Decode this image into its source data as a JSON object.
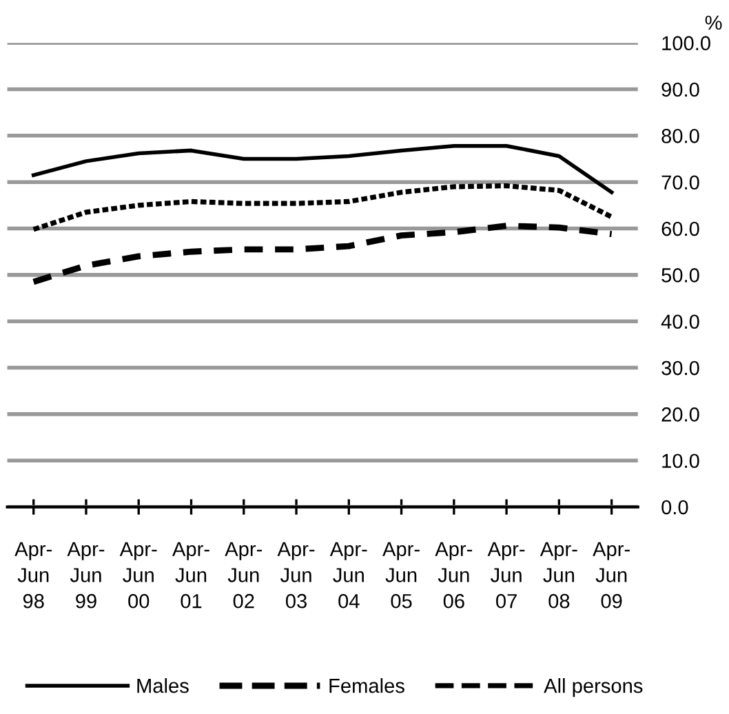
{
  "chart_data": {
    "type": "line",
    "ylabel": "%",
    "categories": [
      "Apr-\nJun\n98",
      "Apr-\nJun\n99",
      "Apr-\nJun\n00",
      "Apr-\nJun\n01",
      "Apr-\nJun\n02",
      "Apr-\nJun\n03",
      "Apr-\nJun\n04",
      "Apr-\nJun\n05",
      "Apr-\nJun\n06",
      "Apr-\nJun\n07",
      "Apr-\nJun\n08",
      "Apr-\nJun\n09"
    ],
    "series": [
      {
        "name": "Males",
        "color": "#000000",
        "line_style": "solid",
        "values": [
          71.5,
          74.5,
          76.2,
          76.8,
          75.0,
          75.0,
          75.6,
          76.8,
          77.8,
          77.8,
          75.6,
          67.8
        ]
      },
      {
        "name": "Females",
        "color": "#000000",
        "line_style": "dashed",
        "values": [
          48.5,
          52.0,
          54.0,
          55.0,
          55.5,
          55.5,
          56.2,
          58.5,
          59.2,
          60.6,
          60.2,
          58.8
        ]
      },
      {
        "name": "All persons",
        "color": "#000000",
        "line_style": "dotted",
        "values": [
          59.8,
          63.5,
          65.0,
          65.8,
          65.4,
          65.4,
          65.8,
          67.8,
          69.0,
          69.2,
          68.2,
          62.5
        ]
      }
    ],
    "ylim": [
      0,
      100
    ],
    "yticks": [
      {
        "value": 0,
        "label": "0.0"
      },
      {
        "value": 10,
        "label": "10.0"
      },
      {
        "value": 20,
        "label": "20.0"
      },
      {
        "value": 30,
        "label": "30.0"
      },
      {
        "value": 40,
        "label": "40.0"
      },
      {
        "value": 50,
        "label": "50.0"
      },
      {
        "value": 60,
        "label": "60.0"
      },
      {
        "value": 70,
        "label": "70.0"
      },
      {
        "value": 80,
        "label": "80.0"
      },
      {
        "value": 90,
        "label": "90.0"
      },
      {
        "value": 100,
        "label": "100.0"
      }
    ],
    "grid": "y",
    "legend": "bottom",
    "marker": "none"
  }
}
